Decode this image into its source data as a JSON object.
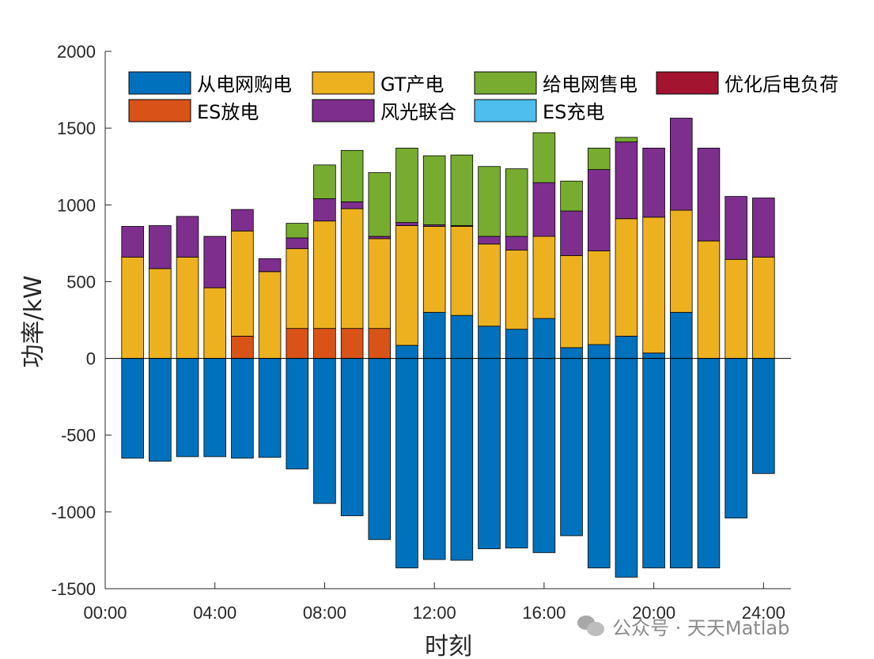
{
  "chart_data": {
    "type": "bar",
    "stacked": true,
    "title": "",
    "xlabel": "时刻",
    "ylabel": "功率/kW",
    "ylim": [
      -1500,
      2000
    ],
    "xlim": [
      0,
      25
    ],
    "yticks": [
      -1500,
      -1000,
      -500,
      0,
      500,
      1000,
      1500,
      2000
    ],
    "xticks": [
      0,
      4,
      8,
      12,
      16,
      20,
      24
    ],
    "xtick_labels": [
      "00:00",
      "04:00",
      "08:00",
      "12:00",
      "16:00",
      "20:00",
      "24:00"
    ],
    "categories": [
      1,
      2,
      3,
      4,
      5,
      6,
      7,
      8,
      9,
      10,
      11,
      12,
      13,
      14,
      15,
      16,
      17,
      18,
      19,
      20,
      21,
      22,
      23,
      24
    ],
    "grid": false,
    "legend_position": "top",
    "series": [
      {
        "name": "从电网购电",
        "color": "#0072BD",
        "values": [
          0,
          0,
          0,
          0,
          0,
          0,
          0,
          0,
          0,
          0,
          85,
          300,
          280,
          210,
          190,
          260,
          70,
          90,
          145,
          35,
          300,
          0,
          0,
          0
        ]
      },
      {
        "name": "ES放电",
        "color": "#D95319",
        "values": [
          0,
          0,
          0,
          0,
          145,
          0,
          195,
          195,
          195,
          195,
          0,
          0,
          0,
          0,
          0,
          0,
          0,
          0,
          0,
          0,
          0,
          0,
          0,
          0
        ]
      },
      {
        "name": "GT产电",
        "color": "#EDB120",
        "values": [
          660,
          585,
          660,
          460,
          685,
          565,
          520,
          700,
          780,
          585,
          780,
          560,
          580,
          535,
          515,
          535,
          600,
          610,
          765,
          885,
          665,
          765,
          645,
          660
        ]
      },
      {
        "name": "风光联合",
        "color": "#7E2F8E",
        "values": [
          200,
          280,
          265,
          335,
          140,
          85,
          70,
          145,
          45,
          15,
          20,
          10,
          5,
          50,
          90,
          350,
          290,
          530,
          500,
          450,
          600,
          605,
          410,
          385
        ]
      },
      {
        "name": "给电网售电",
        "color": "#77AC30",
        "values": [
          0,
          0,
          0,
          0,
          0,
          0,
          95,
          220,
          335,
          415,
          485,
          450,
          460,
          455,
          440,
          325,
          195,
          140,
          30,
          0,
          0,
          0,
          0,
          0
        ]
      },
      {
        "name": "优化后电负荷",
        "color": "#A2142F",
        "values": [
          -650,
          -670,
          -640,
          -640,
          -650,
          -645,
          -720,
          -945,
          -1025,
          -1180,
          -1365,
          -1310,
          -1315,
          -1240,
          -1235,
          -1265,
          -1155,
          -1365,
          -1425,
          -1365,
          -1365,
          -1365,
          -1040,
          -750
        ]
      },
      {
        "name": "ES充电",
        "color": "#4DBEEE",
        "values": [
          0,
          0,
          0,
          0,
          0,
          0,
          0,
          0,
          0,
          0,
          0,
          0,
          0,
          0,
          0,
          0,
          0,
          0,
          0,
          0,
          0,
          0,
          0,
          0
        ]
      }
    ],
    "negative_bar_color": "#0072BD",
    "legend_entries": [
      {
        "name": "从电网购电",
        "color": "#0072BD"
      },
      {
        "name": "GT产电",
        "color": "#EDB120"
      },
      {
        "name": "给电网售电",
        "color": "#77AC30"
      },
      {
        "name": "优化后电负荷",
        "color": "#A2142F"
      },
      {
        "name": "ES放电",
        "color": "#D95319"
      },
      {
        "name": "风光联合",
        "color": "#7E2F8E"
      },
      {
        "name": "ES充电",
        "color": "#4DBEEE"
      }
    ]
  },
  "watermark": {
    "icon": "wechat-icon",
    "text": "公众号 · 天天Matlab"
  }
}
